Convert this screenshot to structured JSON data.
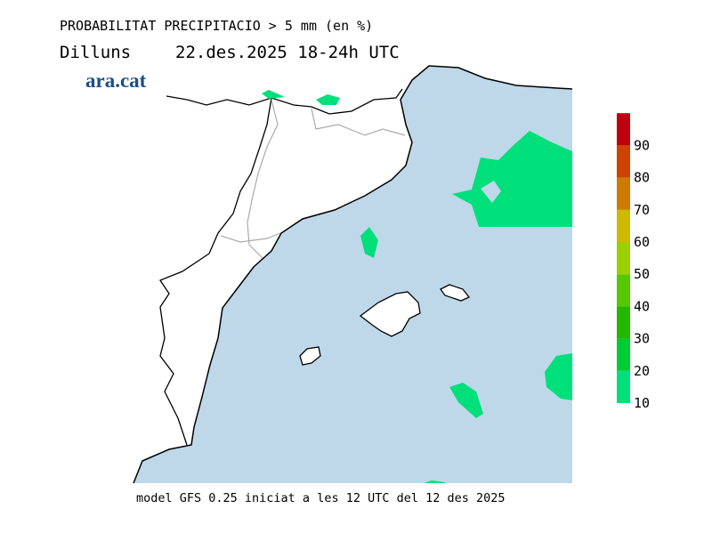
{
  "title": "PROBABILITAT PRECIPITACIO > 5 mm (en %)",
  "day": "Dilluns",
  "period": "22.des.2025 18-24h UTC",
  "logo": "ara.cat",
  "footer": "model GFS 0.25 iniciat a les 12 UTC del 12 des 2025",
  "legend": {
    "ticks": [
      10,
      20,
      30,
      40,
      50,
      60,
      70,
      80,
      90
    ],
    "colors": [
      "#00e07a",
      "#00cc33",
      "#22b800",
      "#55c800",
      "#99d000",
      "#ccbb00",
      "#cc7a00",
      "#cc4400",
      "#c00010"
    ]
  }
}
